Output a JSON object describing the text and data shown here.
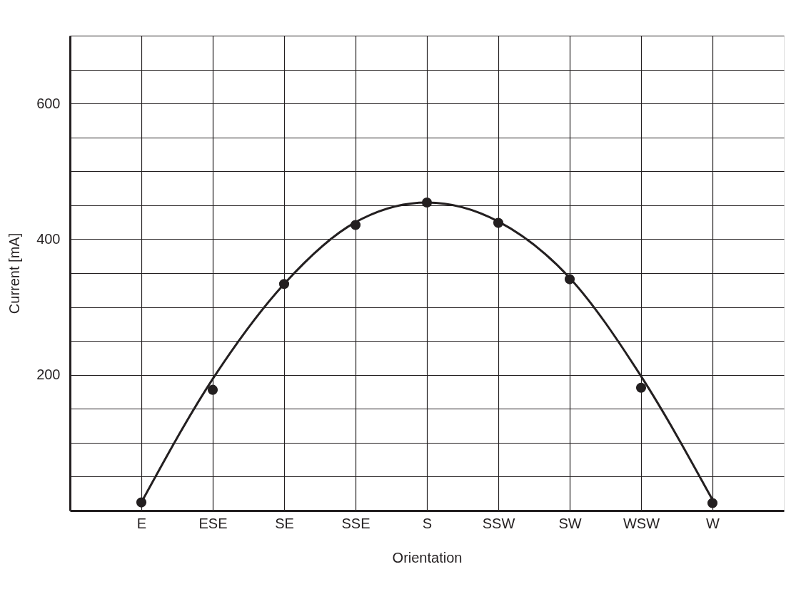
{
  "chart_data": {
    "type": "scatter",
    "xlabel": "Orientation",
    "ylabel": "Current [mA]",
    "categories": [
      "E",
      "ESE",
      "SE",
      "SSE",
      "S",
      "SSW",
      "SW",
      "WSW",
      "W"
    ],
    "series": [
      {
        "color": "#231f20",
        "marker": "circle",
        "values": [
          12,
          178,
          334,
          421,
          454,
          424,
          341,
          181,
          11
        ]
      },
      {
        "type": "line",
        "color": "#231f20",
        "marker": "none",
        "line_style": "solid",
        "values": [
          12,
          194,
          334,
          425,
          454,
          426,
          343,
          198,
          16
        ]
      }
    ],
    "ylim": [
      0,
      700
    ],
    "yticks": [
      {
        "value": 50,
        "label": null
      },
      {
        "value": 100,
        "label": null
      },
      {
        "value": 150,
        "label": null
      },
      200,
      {
        "value": 250,
        "label": null
      },
      {
        "value": 300,
        "label": null
      },
      {
        "value": 350,
        "label": null
      },
      400,
      {
        "value": 450,
        "label": null
      },
      {
        "value": 500,
        "label": null
      },
      {
        "value": 550,
        "label": null
      },
      600,
      {
        "value": 650,
        "label": null
      },
      {
        "value": 700,
        "label": null
      }
    ],
    "grid": true
  }
}
